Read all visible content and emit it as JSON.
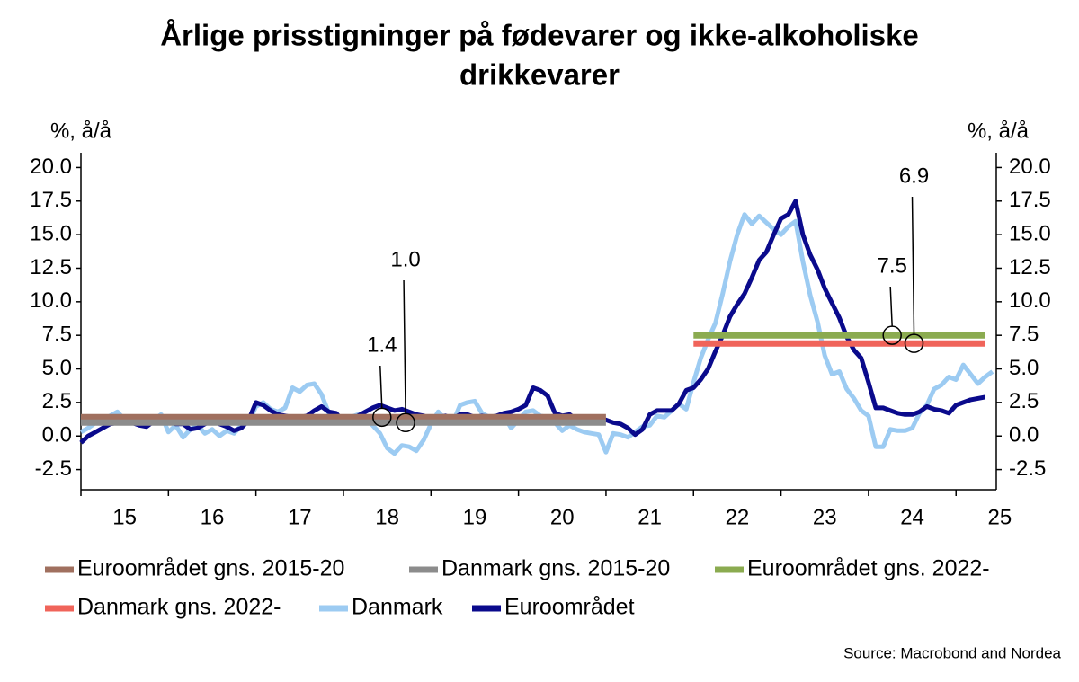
{
  "chart_data": {
    "type": "line",
    "title": "Årlige prisstigninger på fødevarer og ikke-alkoholiske",
    "title_line2": "drikkevarer",
    "y_label_left": "%, å/å",
    "y_label_right": "%, å/å",
    "source": "Source: Macrobond and Nordea",
    "xlim": [
      15,
      25.46
    ],
    "xticks": [
      15,
      16,
      17,
      18,
      19,
      20,
      21,
      22,
      23,
      24,
      25
    ],
    "ylim": [
      -4,
      21.1
    ],
    "yticks": [
      {
        "value": -2.5,
        "label": "-2.5"
      },
      {
        "value": 0,
        "label": "0.0"
      },
      {
        "value": 2.5,
        "label": "2.5"
      },
      {
        "value": 5,
        "label": "5.0"
      },
      {
        "value": 7.5,
        "label": "7.5"
      },
      {
        "value": 10,
        "label": "10.0"
      },
      {
        "value": 12.5,
        "label": "12.5"
      },
      {
        "value": 15,
        "label": "15.0"
      },
      {
        "value": 17.5,
        "label": "17.5"
      },
      {
        "value": 20,
        "label": "20.0"
      }
    ],
    "grid": false,
    "x": [
      15,
      15.083,
      15.167,
      15.25,
      15.333,
      15.417,
      15.5,
      15.583,
      15.667,
      15.75,
      15.833,
      15.917,
      16,
      16.083,
      16.167,
      16.25,
      16.333,
      16.417,
      16.5,
      16.583,
      16.667,
      16.75,
      16.833,
      16.917,
      17,
      17.083,
      17.167,
      17.25,
      17.333,
      17.417,
      17.5,
      17.583,
      17.667,
      17.75,
      17.833,
      17.917,
      18,
      18.083,
      18.167,
      18.25,
      18.333,
      18.417,
      18.5,
      18.583,
      18.667,
      18.75,
      18.833,
      18.917,
      19,
      19.083,
      19.167,
      19.25,
      19.333,
      19.417,
      19.5,
      19.583,
      19.667,
      19.75,
      19.833,
      19.917,
      20,
      20.083,
      20.167,
      20.25,
      20.333,
      20.417,
      20.5,
      20.583,
      20.667,
      20.75,
      20.833,
      20.917,
      21,
      21.083,
      21.167,
      21.25,
      21.333,
      21.417,
      21.5,
      21.583,
      21.667,
      21.75,
      21.833,
      21.917,
      22,
      22.083,
      22.167,
      22.25,
      22.333,
      22.417,
      22.5,
      22.583,
      22.667,
      22.75,
      22.833,
      22.917,
      23,
      23.083,
      23.167,
      23.25,
      23.333,
      23.417,
      23.5,
      23.583,
      23.667,
      23.75,
      23.833,
      23.917,
      24,
      24.083,
      24.167,
      24.25,
      24.333,
      24.417,
      24.5,
      24.583,
      24.667,
      24.75,
      24.833,
      24.917,
      25,
      25.083,
      25.167,
      25.25,
      25.333,
      25.417
    ],
    "series": [
      {
        "name": "Euroområdet gns. 2015-20",
        "color": "#a0705f",
        "x": [
          15,
          21
        ],
        "values": [
          1.4,
          1.4
        ]
      },
      {
        "name": "Danmark gns. 2015-20",
        "color": "#8c8c8c",
        "x": [
          15,
          21
        ],
        "values": [
          1.0,
          1.0
        ]
      },
      {
        "name": "Euroområdet gns. 2022-",
        "color": "#8bab50",
        "x": [
          22,
          25.333
        ],
        "values": [
          7.5,
          7.5
        ]
      },
      {
        "name": "Danmark gns. 2022-",
        "color": "#f0645a",
        "x": [
          22,
          25.333
        ],
        "values": [
          6.9,
          6.9
        ]
      },
      {
        "name": "Danmark",
        "color": "#9ccbf2",
        "values": [
          0.3,
          0.6,
          1.0,
          1.2,
          1.5,
          1.8,
          1.2,
          1.0,
          1.3,
          1.4,
          1.2,
          1.6,
          0.3,
          0.8,
          -0.1,
          0.5,
          0.8,
          0.2,
          0.5,
          0.0,
          0.4,
          0.2,
          0.8,
          1.0,
          2.2,
          2.5,
          2.0,
          1.8,
          2.1,
          3.6,
          3.3,
          3.8,
          3.9,
          3.1,
          1.7,
          1.0,
          1.0,
          1.4,
          1.6,
          1.2,
          0.8,
          0.2,
          -0.9,
          -1.3,
          -0.7,
          -0.8,
          -1.1,
          -0.3,
          0.9,
          1.8,
          1.2,
          1.0,
          2.3,
          2.5,
          2.6,
          1.7,
          1.4,
          1.5,
          1.5,
          0.6,
          1.2,
          1.8,
          1.9,
          1.5,
          1.4,
          1.0,
          0.4,
          0.8,
          0.5,
          0.3,
          0.2,
          0.1,
          -1.2,
          0.2,
          0.1,
          -0.1,
          0.3,
          0.7,
          0.8,
          1.5,
          1.4,
          1.9,
          2.4,
          2.0,
          4.0,
          5.8,
          7.2,
          8.4,
          10.6,
          13.0,
          15.0,
          16.5,
          15.8,
          16.4,
          15.9,
          15.4,
          15.0,
          15.6,
          16.0,
          13.0,
          10.5,
          8.5,
          6.0,
          4.6,
          4.8,
          3.5,
          2.8,
          1.9,
          1.5,
          -0.8,
          -0.8,
          0.5,
          0.4,
          0.4,
          0.6,
          1.7,
          2.3,
          3.5,
          3.8,
          4.4,
          4.2,
          5.3,
          4.6,
          3.9,
          4.4,
          4.8
        ]
      },
      {
        "name": "Euroområdet",
        "color": "#0a0a8c",
        "values": [
          -0.5,
          0.0,
          0.3,
          0.6,
          0.9,
          1.0,
          1.1,
          1.0,
          0.8,
          0.7,
          1.1,
          1.2,
          1.1,
          0.9,
          0.9,
          0.5,
          0.6,
          0.9,
          1.2,
          0.9,
          0.7,
          0.4,
          0.6,
          1.2,
          2.5,
          2.3,
          1.9,
          1.6,
          1.5,
          1.4,
          1.4,
          1.5,
          1.9,
          2.2,
          1.8,
          1.7,
          1.0,
          1.0,
          1.5,
          1.8,
          2.1,
          2.3,
          2.1,
          1.9,
          2.0,
          1.8,
          1.6,
          1.5,
          1.3,
          1.4,
          1.5,
          1.3,
          1.6,
          1.6,
          1.4,
          1.5,
          1.4,
          1.5,
          1.7,
          1.8,
          2.0,
          2.3,
          3.6,
          3.4,
          3.0,
          1.7,
          1.5,
          1.6,
          1.2,
          1.4,
          1.3,
          1.1,
          1.2,
          1.0,
          0.9,
          0.6,
          0.1,
          0.5,
          1.6,
          1.9,
          1.9,
          1.9,
          2.4,
          3.4,
          3.6,
          4.2,
          5.0,
          6.3,
          7.5,
          8.9,
          9.8,
          10.6,
          11.8,
          13.1,
          13.7,
          15.0,
          16.2,
          16.5,
          17.5,
          15.0,
          13.5,
          12.4,
          11.0,
          9.9,
          8.8,
          7.4,
          6.4,
          5.8,
          4.0,
          2.1,
          2.1,
          1.9,
          1.7,
          1.6,
          1.6,
          1.8,
          2.2,
          2.0,
          1.9,
          1.7,
          2.3,
          2.5,
          2.7,
          2.8,
          2.9,
          null
        ]
      }
    ],
    "annotations": [
      "1.4",
      "1.0",
      "7.5",
      "6.9"
    ]
  }
}
